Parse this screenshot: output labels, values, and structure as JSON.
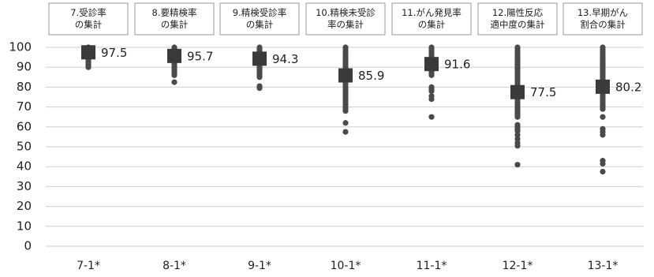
{
  "chart_data": {
    "type": "scatter",
    "title": "",
    "xlabel": "",
    "ylabel": "",
    "ylim": [
      0,
      100
    ],
    "yticks": [
      0,
      10,
      20,
      30,
      40,
      50,
      60,
      70,
      80,
      90,
      100
    ],
    "grid": true,
    "categories": [
      "7-1*",
      "8-1*",
      "9-1*",
      "10-1*",
      "11-1*",
      "12-1*",
      "13-1*"
    ],
    "category_headers": [
      [
        "7.受診率",
        "の集計"
      ],
      [
        "8.要精検率",
        "の集計"
      ],
      [
        "9.精検受診率",
        "の集計"
      ],
      [
        "10.精検未受診",
        "率の集計"
      ],
      [
        "11.がん発見率",
        "の集計"
      ],
      [
        "12.陽性反応",
        "適中度の集計"
      ],
      [
        "13.早期がん",
        "割合の集計"
      ]
    ],
    "means": [
      97.5,
      95.7,
      94.3,
      85.9,
      91.6,
      77.5,
      80.2
    ],
    "mean_labels": [
      "97.5",
      "95.7",
      "94.3",
      "85.9",
      "91.6",
      "77.5",
      "80.2"
    ],
    "points": [
      [
        100,
        99.5,
        99,
        98.5,
        98,
        97.5,
        97,
        96.5,
        96,
        95.5,
        95,
        94,
        93,
        92,
        91,
        90
      ],
      [
        100,
        99.5,
        99,
        98.5,
        98,
        97.5,
        97,
        96,
        95,
        94.5,
        94,
        93.5,
        93,
        92,
        91,
        90,
        89,
        88,
        87,
        86,
        82.5
      ],
      [
        100,
        99.5,
        99,
        98.5,
        98,
        97,
        96.5,
        96,
        95.5,
        95,
        94,
        93,
        92,
        91,
        90,
        89,
        88,
        87,
        86,
        85,
        80.5,
        79.5
      ],
      [
        100,
        99,
        98,
        97,
        96,
        95,
        94,
        93,
        92,
        91,
        90,
        89,
        88,
        87,
        86,
        85,
        84,
        83,
        82,
        81,
        80,
        79,
        78,
        77,
        76,
        75,
        74,
        73,
        72,
        71,
        70,
        69,
        68,
        62,
        57.5
      ],
      [
        100,
        99.5,
        99,
        98,
        97,
        96,
        95,
        94,
        93,
        92,
        91,
        90,
        89,
        88,
        87,
        86,
        80,
        79,
        78,
        75.5,
        74,
        65
      ],
      [
        100,
        99,
        98,
        97,
        96,
        95,
        94,
        93,
        92,
        91,
        90,
        89,
        88,
        87,
        86,
        85,
        84,
        83,
        82,
        81,
        80,
        79,
        78,
        77,
        76,
        75,
        74,
        73,
        72,
        71,
        70,
        69,
        68,
        67,
        66,
        65,
        61,
        60,
        59,
        58,
        56,
        54,
        52,
        50.5,
        41
      ],
      [
        100,
        99,
        98,
        97,
        96,
        95,
        94,
        93,
        92,
        91,
        90,
        89,
        88,
        87,
        86,
        85,
        84,
        83,
        82,
        81,
        80,
        79,
        78,
        77,
        76,
        75,
        74,
        73,
        72,
        71,
        70,
        69,
        65,
        59,
        57.5,
        56,
        43,
        41.5,
        37.5
      ]
    ]
  }
}
